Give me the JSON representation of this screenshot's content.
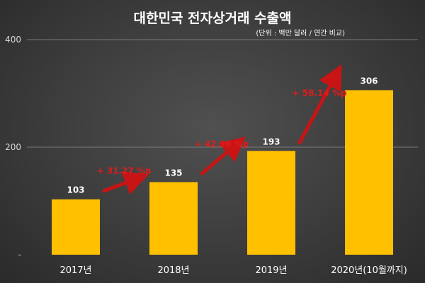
{
  "chart_data": {
    "type": "bar",
    "title": "대한민국 전자상거래 수출액",
    "unit_note": "(단위 : 백만 달러 / 연간 비교)",
    "categories": [
      "2017년",
      "2018년",
      "2019년",
      "2020년(10월까지)"
    ],
    "values": [
      103,
      135,
      193,
      306
    ],
    "data_labels": [
      "103",
      "135",
      "193",
      "306"
    ],
    "y_ticks": [
      {
        "value": 0,
        "label": "-"
      },
      {
        "value": 200,
        "label": "200"
      },
      {
        "value": 400,
        "label": "400"
      }
    ],
    "ylim": [
      0,
      400
    ],
    "grid": true,
    "growth_annotations": [
      {
        "from": 0,
        "to": 1,
        "label": "+ 31.27 %p"
      },
      {
        "from": 1,
        "to": 2,
        "label": "+ 42.96 %p"
      },
      {
        "from": 2,
        "to": 3,
        "label": "+ 58.14 %p"
      }
    ],
    "colors": {
      "bar": "#ffc000",
      "arrow": "#c81414",
      "growth_text": "#e21b1b",
      "grid": "#7a7a7a",
      "text": "#ffffff"
    }
  }
}
